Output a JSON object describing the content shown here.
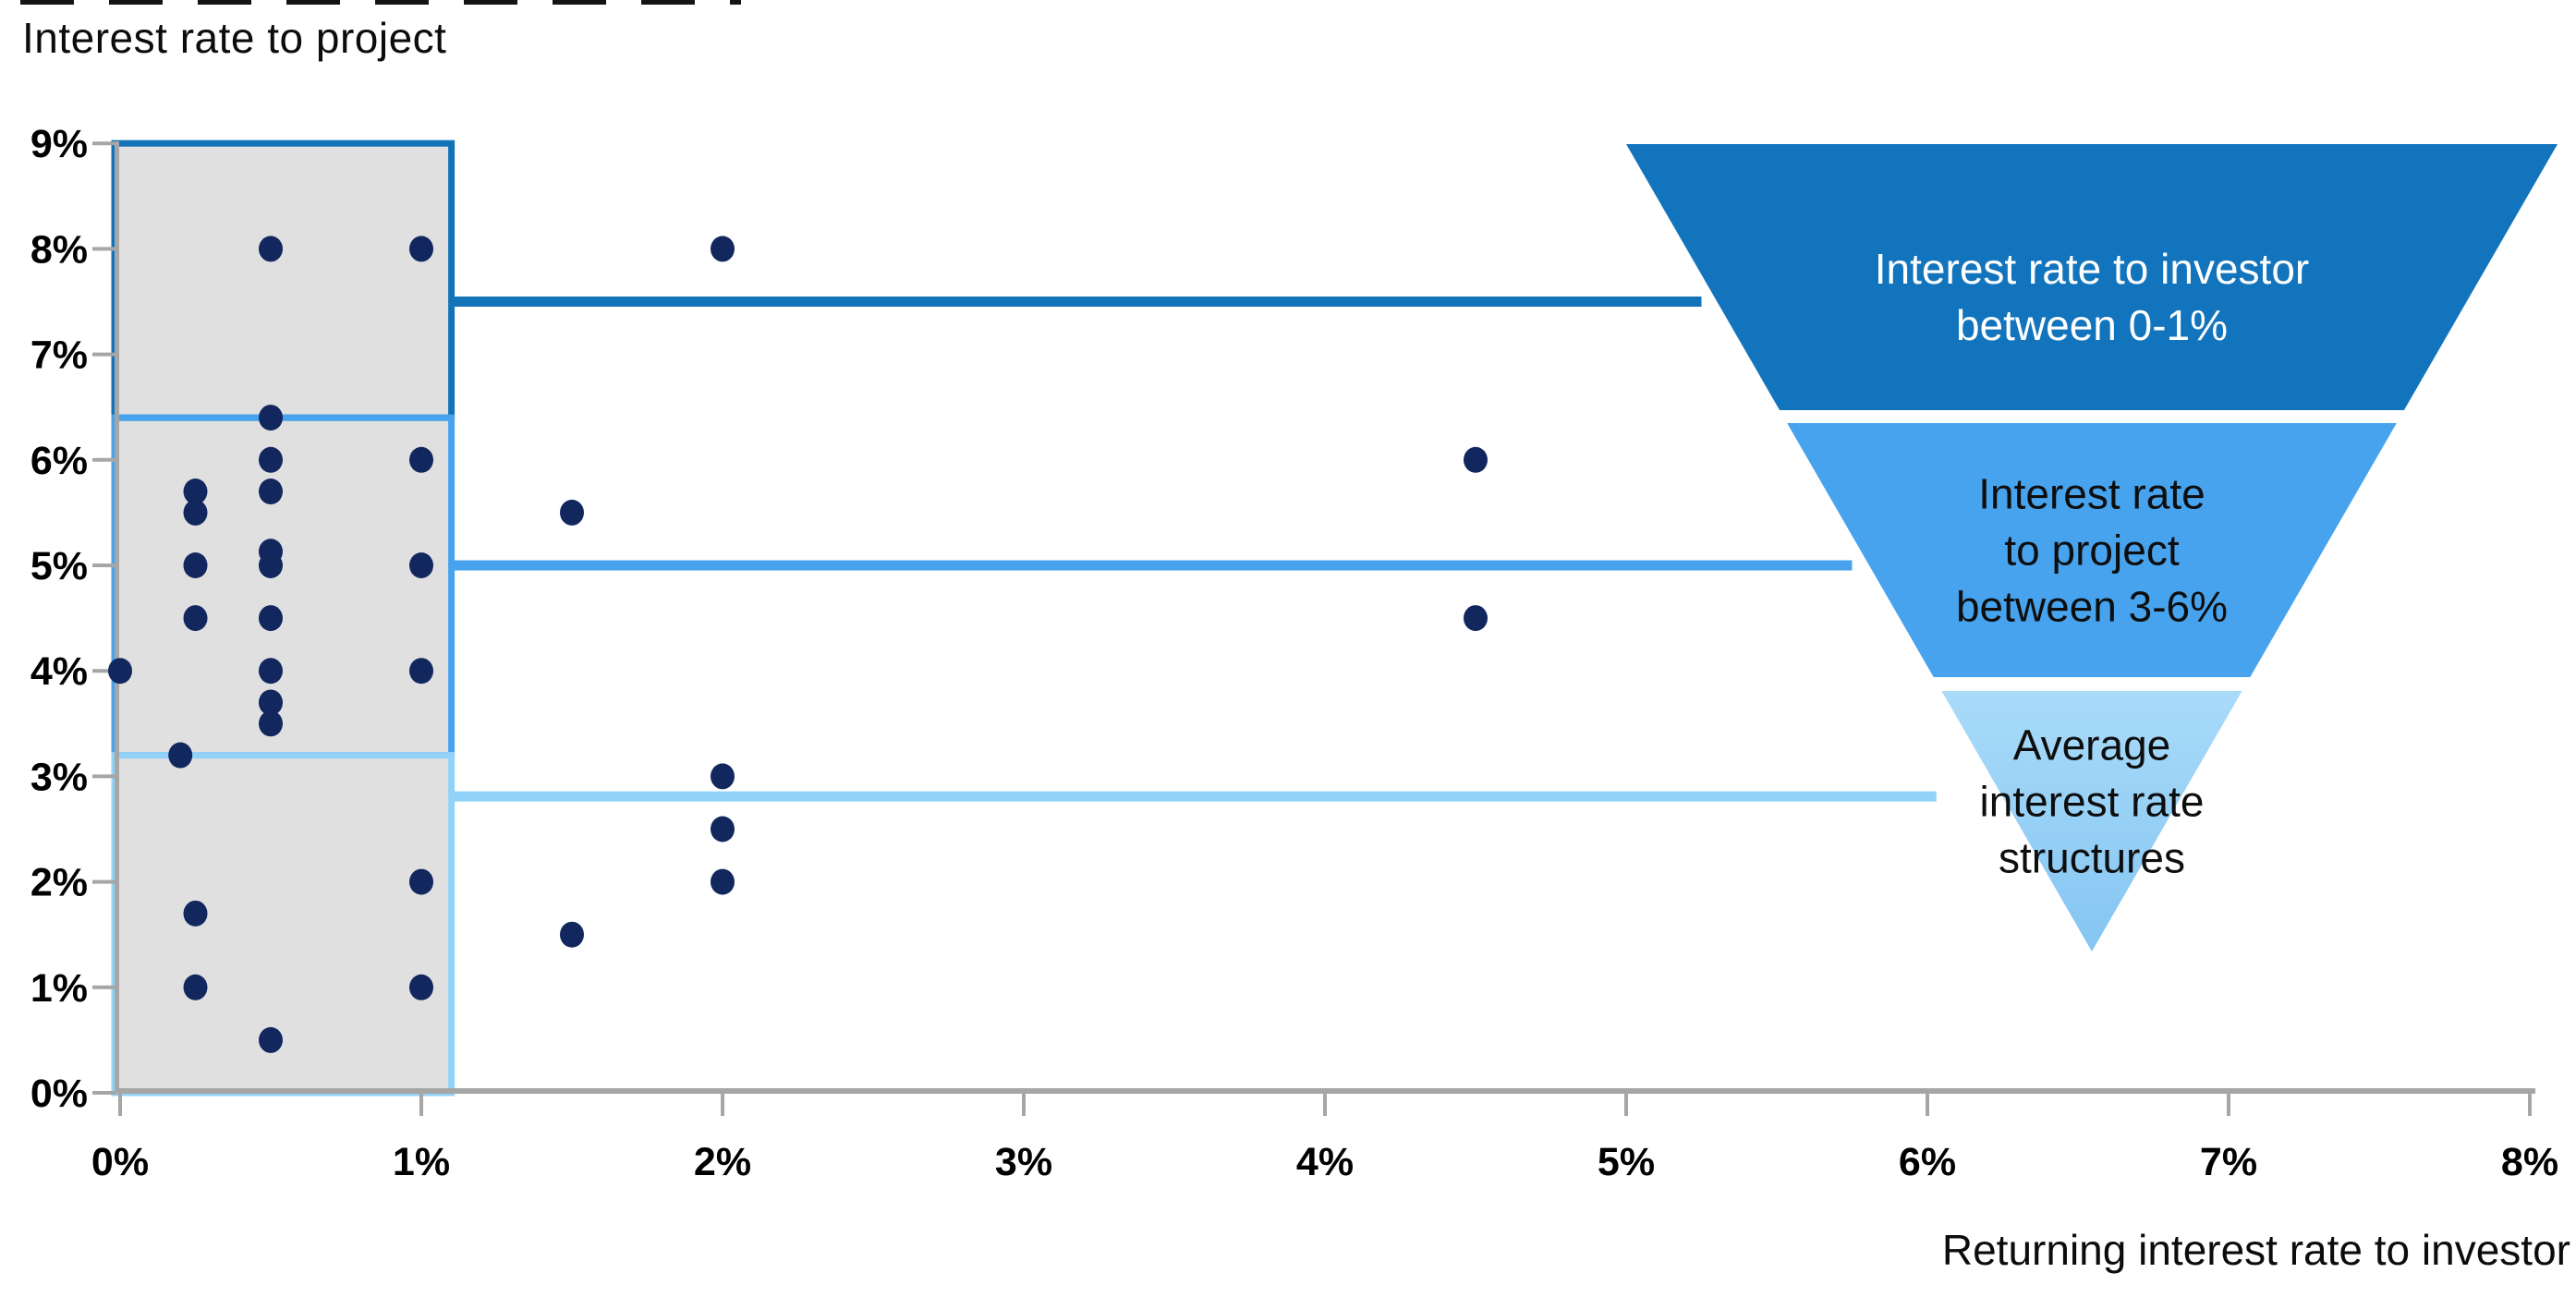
{
  "title": "Interest rate to project",
  "x_axis_title": "Returning interest rate to investor",
  "chart_data": {
    "type": "scatter",
    "title": "Interest rate to project",
    "xlabel": "Returning interest rate to investor",
    "ylabel": "Interest rate to project",
    "xlim": [
      0,
      8
    ],
    "ylim": [
      0,
      9
    ],
    "x_tick_values": [
      0,
      1,
      2,
      3,
      4,
      5,
      6,
      7,
      8
    ],
    "x_tick_labels": [
      "0%",
      "1%",
      "2%",
      "3%",
      "4%",
      "5%",
      "6%",
      "7%",
      "8%"
    ],
    "y_tick_values": [
      0,
      1,
      2,
      3,
      4,
      5,
      6,
      7,
      8,
      9
    ],
    "y_tick_labels": [
      "0%",
      "1%",
      "2%",
      "3%",
      "4%",
      "5%",
      "6%",
      "7%",
      "8%",
      "9%"
    ],
    "grid": false,
    "points": [
      [
        0.5,
        8
      ],
      [
        1,
        8
      ],
      [
        2,
        8
      ],
      [
        0.5,
        6.4
      ],
      [
        0.5,
        6
      ],
      [
        1,
        6
      ],
      [
        4.5,
        6
      ],
      [
        0.25,
        5.7
      ],
      [
        0.5,
        5.7
      ],
      [
        0.25,
        5.5
      ],
      [
        1.5,
        5.5
      ],
      [
        0.5,
        5.13
      ],
      [
        0.25,
        5
      ],
      [
        0.5,
        5
      ],
      [
        1,
        5
      ],
      [
        0.25,
        4.5
      ],
      [
        0.5,
        4.5
      ],
      [
        4.5,
        4.5
      ],
      [
        0,
        4
      ],
      [
        0.5,
        4
      ],
      [
        1,
        4
      ],
      [
        0.5,
        3.7
      ],
      [
        0.5,
        3.5
      ],
      [
        0.2,
        3.2
      ],
      [
        2,
        3
      ],
      [
        2,
        2.5
      ],
      [
        1,
        2
      ],
      [
        2,
        2
      ],
      [
        0.25,
        1.7
      ],
      [
        1.5,
        1.5
      ],
      [
        0.25,
        1
      ],
      [
        1,
        1
      ],
      [
        0.5,
        0.5
      ]
    ],
    "point_color": "#12275E",
    "axis_color": "#A6A6A6",
    "box_fill": "#E0E0E1",
    "boxes": [
      {
        "x0": 0,
        "x1": 1.1,
        "y0": 6.4,
        "y1": 9,
        "border": "#1273B8"
      },
      {
        "x0": 0,
        "x1": 1.1,
        "y0": 3.2,
        "y1": 6.4,
        "border": "#47A3EE"
      },
      {
        "x0": 0,
        "x1": 1.1,
        "y0": 0,
        "y1": 3.2,
        "border": "#93D2F8"
      }
    ],
    "ref_lines": [
      {
        "y": 7.5,
        "x_start": 1.1,
        "x_end": 5.25,
        "color": "#1273B8"
      },
      {
        "y": 5.0,
        "x_start": 1.1,
        "x_end": 5.75,
        "color": "#47A3EE"
      },
      {
        "y": 2.81,
        "x_start": 1.1,
        "x_end": 6.03,
        "color": "#93D2F8"
      }
    ],
    "funnel": {
      "bands": [
        {
          "label": "Interest rate to investor\nbetween 0-1%",
          "fill": "#1274BC",
          "text_color": "#FFFFFF"
        },
        {
          "label": "Interest rate\nto project\nbetween 3-6%",
          "fill": "#47A3EE",
          "text_color": "#0E0E0E"
        },
        {
          "label": "Average\ninterest rate\nstructures",
          "fill_gradient": [
            "#A9DBF9",
            "#84C5F2"
          ],
          "text_color": "#0E0E0E"
        }
      ]
    }
  }
}
